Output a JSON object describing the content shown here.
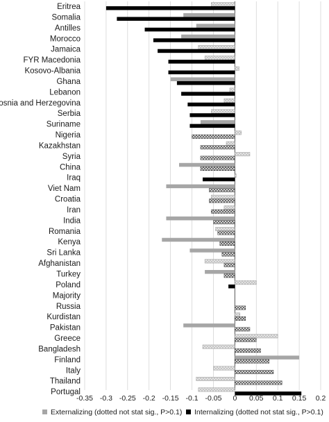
{
  "chart_data": {
    "type": "bar",
    "orientation": "horizontal",
    "categories": [
      "Eritrea",
      "Somalia",
      "Antilles",
      "Morocco",
      "Jamaica",
      "FYR Macedonia",
      "Kosovo-Albania",
      "Ghana",
      "Lebanon",
      "Bosnia and Herzegovina",
      "Serbia",
      "Suriname",
      "Nigeria",
      "Kazakhstan",
      "Syria",
      "China",
      "Iraq",
      "Viet Nam",
      "Croatia",
      "Iran",
      "India",
      "Romania",
      "Kenya",
      "Sri Lanka",
      "Afghanistan",
      "Turkey",
      "Poland",
      "Majority",
      "Russia",
      "Kurdistan",
      "Pakistan",
      "Greece",
      "Bangladesh",
      "Finland",
      "Italy",
      "Thailand",
      "Portugal"
    ],
    "series": [
      {
        "name": "Externalizing (dotted not stat sig., P>0.1)",
        "color": "#a6a6a6",
        "values": [
          -0.055,
          -0.12,
          -0.09,
          -0.125,
          -0.085,
          -0.07,
          0.01,
          -0.15,
          -0.012,
          -0.025,
          -0.055,
          -0.08,
          0.015,
          -0.02,
          0.035,
          -0.13,
          0.003,
          -0.16,
          -0.055,
          -0.025,
          -0.16,
          -0.045,
          -0.17,
          -0.105,
          -0.07,
          -0.07,
          0.05,
          0.0,
          0.0,
          0.012,
          -0.12,
          0.1,
          -0.075,
          0.15,
          -0.05,
          -0.09,
          -0.085
        ],
        "significant": [
          false,
          true,
          true,
          true,
          false,
          false,
          false,
          true,
          false,
          false,
          false,
          true,
          false,
          false,
          false,
          true,
          false,
          true,
          false,
          false,
          true,
          false,
          true,
          true,
          false,
          true,
          false,
          false,
          false,
          false,
          true,
          false,
          false,
          true,
          false,
          false,
          false
        ]
      },
      {
        "name": "Internalizing (dotted not stat sig., P>0.1)",
        "color": "#000000",
        "values": [
          -0.3,
          -0.275,
          -0.21,
          -0.19,
          -0.18,
          -0.155,
          -0.155,
          -0.135,
          -0.125,
          -0.11,
          -0.105,
          -0.105,
          -0.1,
          -0.08,
          -0.08,
          -0.08,
          -0.075,
          -0.06,
          -0.06,
          -0.055,
          -0.05,
          -0.04,
          -0.035,
          -0.03,
          -0.025,
          -0.025,
          -0.015,
          0.0,
          0.025,
          0.025,
          0.035,
          0.05,
          0.06,
          0.08,
          0.09,
          0.11,
          0.155
        ],
        "significant": [
          true,
          true,
          true,
          true,
          true,
          true,
          true,
          true,
          true,
          true,
          true,
          true,
          false,
          false,
          false,
          false,
          true,
          false,
          false,
          false,
          false,
          false,
          false,
          false,
          false,
          false,
          true,
          false,
          false,
          false,
          false,
          false,
          false,
          false,
          false,
          false,
          true
        ]
      }
    ],
    "x_ticks": [
      "-0.35",
      "-0.3",
      "-0.25",
      "-0.2",
      "-0.15",
      "-0.1",
      "-0.05",
      "0",
      "0.05",
      "0.1",
      "0.15",
      "0.2"
    ],
    "xlim": [
      -0.35,
      0.2
    ],
    "grid": true,
    "legend_position": "bottom"
  }
}
